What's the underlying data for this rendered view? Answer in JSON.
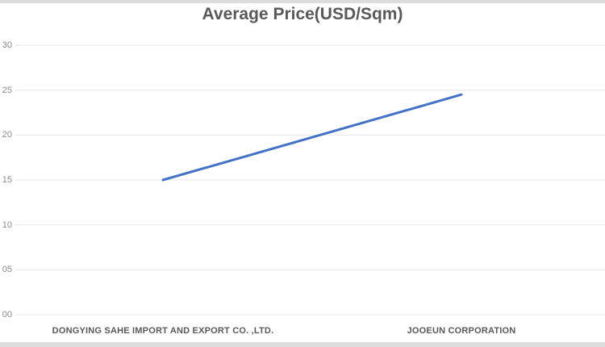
{
  "page": {
    "background": "#ffffff",
    "top_strip_color": "#dcdcdc",
    "bottom_strip_color": "#dcdcdc"
  },
  "chart_data": {
    "type": "line",
    "title": "Average Price(USD/Sqm)",
    "categories": [
      "DONGYING SAHE IMPORT AND EXPORT CO. ,LTD.",
      "JOOEUN CORPORATION"
    ],
    "series": [
      {
        "name": "Average Price(USD/Sqm)",
        "values": [
          15,
          24.5
        ]
      }
    ],
    "ylim": [
      0,
      30
    ],
    "ytick_step": 5,
    "ytick_labels_bottom_to_top": [
      "00",
      "05",
      "10",
      "15",
      "20",
      "25",
      "30"
    ],
    "grid": true,
    "legend_position": "none",
    "colors": {
      "line": "#4472C4",
      "gridline": "#e7e7e7",
      "title": "#595959",
      "ytick_text": "#8a8a8a",
      "category_text": "#595959"
    }
  }
}
